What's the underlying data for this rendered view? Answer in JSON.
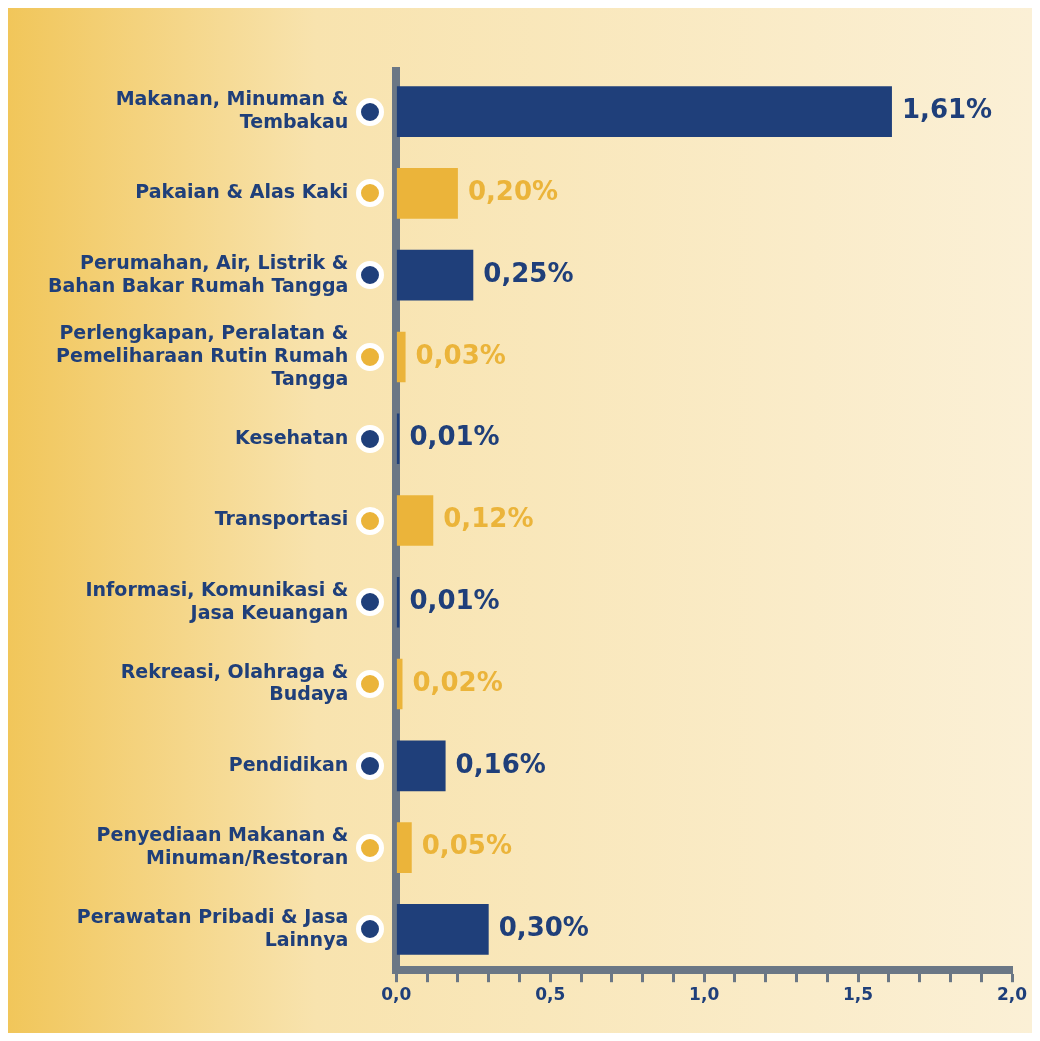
{
  "chart_data": {
    "type": "bar",
    "orientation": "horizontal",
    "categories": [
      "Makanan, Minuman & Tembakau",
      "Pakaian & Alas Kaki",
      "Perumahan, Air, Listrik & Bahan Bakar Rumah Tangga",
      "Perlengkapan, Peralatan & Pemeliharaan Rutin Rumah Tangga",
      "Kesehatan",
      "Transportasi",
      "Informasi, Komunikasi & Jasa Keuangan",
      "Rekreasi, Olahraga & Budaya",
      "Pendidikan",
      "Penyediaan Makanan & Minuman/Restoran",
      "Perawatan Pribadi & Jasa Lainnya"
    ],
    "values": [
      1.61,
      0.2,
      0.25,
      0.03,
      0.01,
      0.12,
      0.01,
      0.02,
      0.16,
      0.05,
      0.3
    ],
    "colors": [
      "#1f3f7a",
      "#ebb43a",
      "#1f3f7a",
      "#ebb43a",
      "#1f3f7a",
      "#ebb43a",
      "#1f3f7a",
      "#ebb43a",
      "#1f3f7a",
      "#ebb43a",
      "#1f3f7a"
    ],
    "value_labels": [
      "1,61%",
      "0,20%",
      "0,25%",
      "0,03%",
      "0,01%",
      "0,12%",
      "0,01%",
      "0,02%",
      "0,16%",
      "0,05%",
      "0,30%"
    ],
    "xlim": [
      0,
      2
    ],
    "xticks": [
      {
        "value": 0,
        "label": "0,0"
      },
      {
        "value": 0.1,
        "label": null
      },
      {
        "value": 0.2,
        "label": null
      },
      {
        "value": 0.3,
        "label": null
      },
      {
        "value": 0.4,
        "label": null
      },
      {
        "value": 0.5,
        "label": "0,5"
      },
      {
        "value": 0.6,
        "label": null
      },
      {
        "value": 0.7,
        "label": null
      },
      {
        "value": 0.8,
        "label": null
      },
      {
        "value": 0.9,
        "label": null
      },
      {
        "value": 1,
        "label": "1,0"
      },
      {
        "value": 1.1,
        "label": null
      },
      {
        "value": 1.2,
        "label": null
      },
      {
        "value": 1.3,
        "label": null
      },
      {
        "value": 1.4,
        "label": null
      },
      {
        "value": 1.5,
        "label": "1,5"
      },
      {
        "value": 1.6,
        "label": null
      },
      {
        "value": 1.7,
        "label": null
      },
      {
        "value": 1.8,
        "label": null
      },
      {
        "value": 1.9,
        "label": null
      },
      {
        "value": 2,
        "label": "2,0"
      }
    ],
    "grid": false,
    "legend": false
  }
}
